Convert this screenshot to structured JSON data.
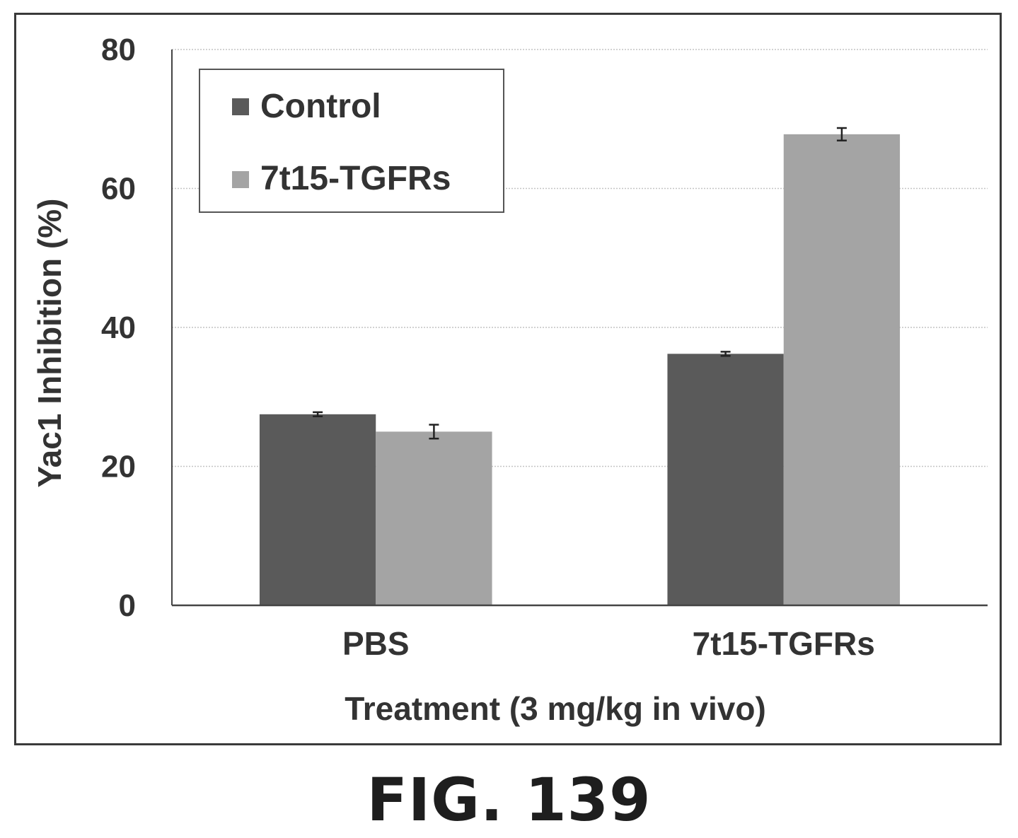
{
  "chart_data": {
    "type": "bar",
    "categories": [
      "PBS",
      "7t15-TGFRs"
    ],
    "series": [
      {
        "name": "Control",
        "values": [
          27.5,
          36.2
        ],
        "errors": [
          0.3,
          0.3
        ]
      },
      {
        "name": "7t15-TGFRs",
        "values": [
          25.0,
          67.8
        ],
        "errors": [
          1.0,
          0.9
        ]
      }
    ],
    "title": "",
    "xlabel": "Treatment (3 mg/kg in vivo)",
    "ylabel": "Yac1 Inhibition (%)",
    "ylim": [
      0,
      80
    ],
    "yticks": [
      0,
      20,
      40,
      60,
      80
    ],
    "grid": true,
    "legend_position": "top-left",
    "colors": {
      "Control": "#5a5a5a",
      "7t15-TGFRs": "#a4a4a4"
    }
  },
  "caption": "FIG. 139"
}
